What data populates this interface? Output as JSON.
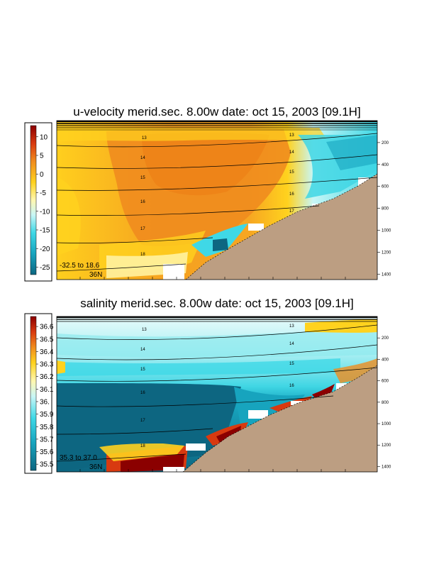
{
  "chart_data": [
    {
      "type": "heatmap",
      "title": "u-velocity merid.sec.  8.00w   date: oct 15, 2003   [09.1H]",
      "colorbar": {
        "ticks": [
          "10",
          "5",
          "0",
          "-5",
          "-10",
          "-15",
          "-20",
          "-25"
        ],
        "tick_values": [
          10,
          5,
          0,
          -5,
          -10,
          -15,
          -20,
          -25
        ],
        "range": [
          -27,
          13
        ]
      },
      "range_label": "-32.5 to  18.6",
      "latitude_label": "36N",
      "depth_ticks": [
        200,
        400,
        600,
        800,
        1000,
        1200,
        1400
      ],
      "isopycnal_labels": [
        "13",
        "14",
        "15",
        "16",
        "17",
        "18"
      ],
      "isopycnal_labels_right": [
        "13",
        "14",
        "15",
        "16",
        "17"
      ]
    },
    {
      "type": "heatmap",
      "title": "salinity merid.sec.  8.00w   date: oct 15, 2003   [09.1H]",
      "colorbar": {
        "ticks": [
          "36.6",
          "36.5",
          "36.4",
          "36.3",
          "36.2",
          "36.1",
          "36.",
          "35.9",
          "35.8",
          "35.7",
          "35.6",
          "35.5"
        ],
        "tick_values": [
          36.6,
          36.5,
          36.4,
          36.3,
          36.2,
          36.1,
          36.0,
          35.9,
          35.8,
          35.7,
          35.6,
          35.5
        ],
        "range": [
          35.45,
          36.68
        ]
      },
      "range_label": "35.3 to  37.0",
      "latitude_label": "36N",
      "depth_ticks": [
        200,
        400,
        600,
        800,
        1000,
        1200,
        1400
      ],
      "isopycnal_labels": [
        "13",
        "14",
        "15",
        "16",
        "17",
        "18"
      ],
      "isopycnal_labels_right": [
        "13",
        "14",
        "15",
        "16"
      ]
    }
  ],
  "colors": {
    "land": "#bc9e82",
    "deep_salinity": "#0d6681",
    "velocity_core": "#f08c1e"
  }
}
